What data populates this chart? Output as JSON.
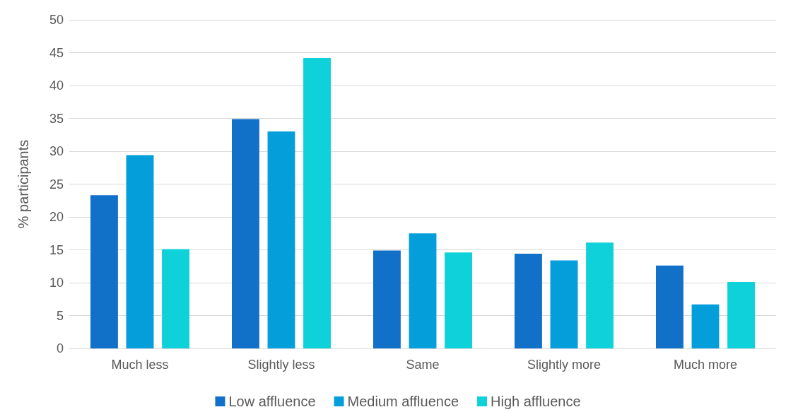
{
  "chart_data": {
    "type": "bar",
    "ylabel": "% participants",
    "categories": [
      "Much less",
      "Slightly less",
      "Same",
      "Slightly more",
      "Much more"
    ],
    "series": [
      {
        "name": "Low affluence",
        "color": "#1170c8",
        "values": [
          23.3,
          34.9,
          14.9,
          14.4,
          12.6
        ]
      },
      {
        "name": "Medium affluence",
        "color": "#049fdb",
        "values": [
          29.4,
          33.0,
          17.5,
          13.4,
          6.7
        ]
      },
      {
        "name": "High affluence",
        "color": "#0ed1d9",
        "values": [
          15.1,
          44.2,
          14.6,
          16.1,
          10.1
        ]
      }
    ],
    "ylim": [
      0,
      50
    ],
    "yticks": [
      0,
      5,
      10,
      15,
      20,
      25,
      30,
      35,
      40,
      45,
      50
    ],
    "grid": "y",
    "legend": "bottom"
  }
}
